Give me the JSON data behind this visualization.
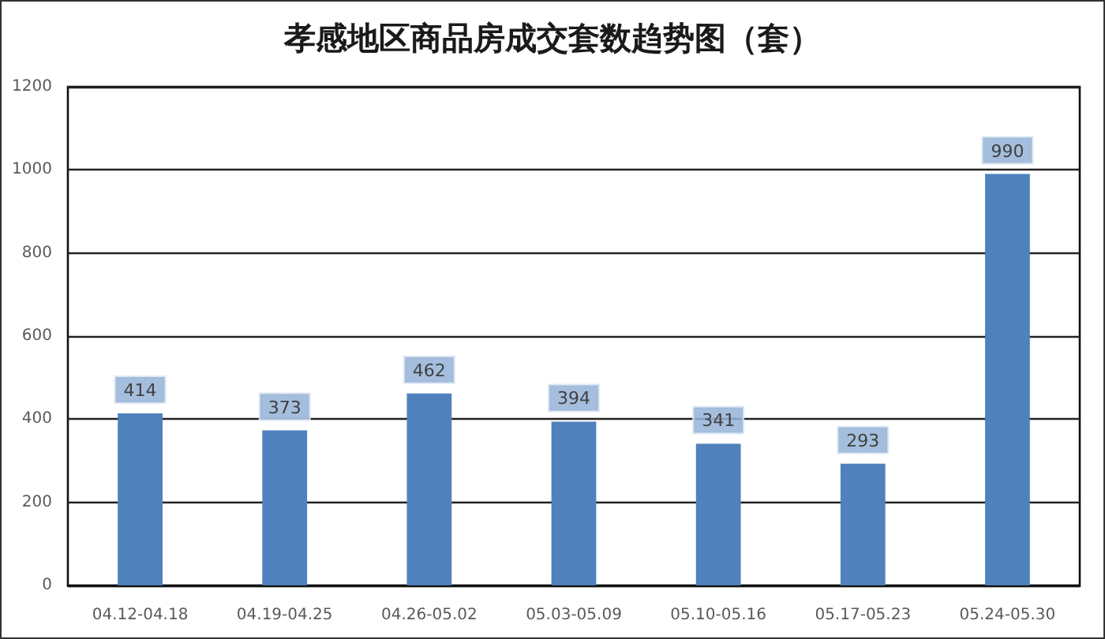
{
  "chart_data": {
    "type": "bar",
    "title": "孝感地区商品房成交套数趋势图（套）",
    "categories": [
      "04.12-04.18",
      "04.19-04.25",
      "04.26-05.02",
      "05.03-05.09",
      "05.10-05.16",
      "05.17-05.23",
      "05.24-05.30"
    ],
    "values": [
      414,
      373,
      462,
      394,
      341,
      293,
      990
    ],
    "color": "#4f81bd",
    "ylim": [
      0,
      1200
    ],
    "yticks": [
      0,
      200,
      400,
      600,
      800,
      1000,
      1200
    ],
    "grid": "y",
    "data_labels": true
  }
}
